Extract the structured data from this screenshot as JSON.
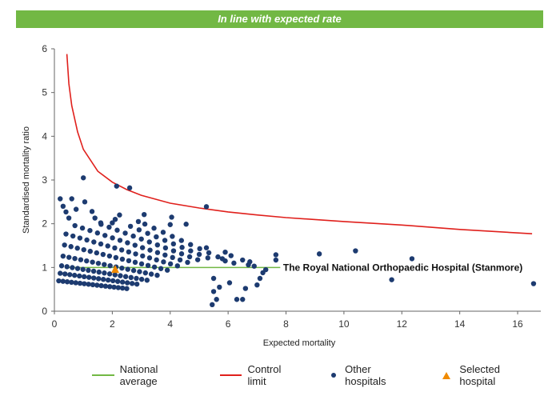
{
  "banner": {
    "text": "In line with expected rate"
  },
  "colors": {
    "banner": "#72b844",
    "control": "#e0201c",
    "national": "#72b844",
    "dots": "#1d3b70",
    "selected": "#f08a00"
  },
  "chart_data": {
    "type": "scatter",
    "xlabel": "Expected mortality",
    "ylabel": "Standardised mortality ratio",
    "xlim": [
      0,
      16.8
    ],
    "ylim": [
      0,
      6
    ],
    "xticks": [
      0,
      2,
      4,
      6,
      8,
      10,
      12,
      14,
      16
    ],
    "yticks": [
      0,
      1,
      2,
      3,
      4,
      5,
      6
    ],
    "grid": false,
    "legend_position": "bottom",
    "national_average": {
      "name": "National average",
      "y": 1.0,
      "x_range": [
        0.4,
        7.8
      ]
    },
    "control_limit": {
      "name": "Control limit",
      "points": [
        [
          0.43,
          5.88
        ],
        [
          0.5,
          5.2
        ],
        [
          0.6,
          4.7
        ],
        [
          0.8,
          4.1
        ],
        [
          1.0,
          3.7
        ],
        [
          1.5,
          3.2
        ],
        [
          2.0,
          2.95
        ],
        [
          2.5,
          2.78
        ],
        [
          3.0,
          2.65
        ],
        [
          4.0,
          2.47
        ],
        [
          5.0,
          2.36
        ],
        [
          6.0,
          2.27
        ],
        [
          7.0,
          2.2
        ],
        [
          8.0,
          2.14
        ],
        [
          10.0,
          2.05
        ],
        [
          12.0,
          1.97
        ],
        [
          14.0,
          1.87
        ],
        [
          16.5,
          1.77
        ]
      ]
    },
    "other_hospitals": {
      "name": "Other hospitals",
      "points": [
        [
          0.2,
          2.57
        ],
        [
          0.3,
          2.4
        ],
        [
          0.4,
          2.27
        ],
        [
          0.5,
          2.13
        ],
        [
          0.6,
          2.57
        ],
        [
          0.75,
          2.33
        ],
        [
          1.0,
          3.05
        ],
        [
          1.05,
          2.5
        ],
        [
          1.3,
          2.28
        ],
        [
          1.4,
          2.13
        ],
        [
          1.6,
          2.02
        ],
        [
          2.0,
          2.02
        ],
        [
          2.1,
          2.1
        ],
        [
          2.25,
          2.2
        ],
        [
          2.15,
          2.86
        ],
        [
          2.6,
          2.82
        ],
        [
          2.9,
          2.05
        ],
        [
          3.1,
          2.21
        ],
        [
          4.05,
          2.15
        ],
        [
          4.55,
          1.99
        ],
        [
          5.25,
          2.39
        ],
        [
          4.0,
          1.98
        ],
        [
          5.25,
          1.45
        ],
        [
          5.9,
          1.35
        ],
        [
          6.1,
          1.27
        ],
        [
          6.5,
          1.17
        ],
        [
          6.75,
          1.13
        ],
        [
          7.65,
          1.29
        ],
        [
          7.65,
          1.17
        ],
        [
          9.15,
          1.31
        ],
        [
          10.4,
          1.38
        ],
        [
          12.35,
          1.2
        ],
        [
          11.65,
          0.72
        ],
        [
          16.55,
          0.63
        ],
        [
          6.6,
          0.52
        ],
        [
          6.05,
          0.65
        ],
        [
          6.3,
          0.27
        ],
        [
          6.5,
          0.27
        ],
        [
          5.6,
          0.27
        ],
        [
          5.45,
          0.15
        ],
        [
          7.0,
          0.6
        ],
        [
          7.1,
          0.75
        ],
        [
          7.2,
          0.88
        ],
        [
          7.3,
          0.95
        ],
        [
          6.9,
          1.03
        ],
        [
          6.7,
          1.06
        ],
        [
          6.2,
          1.1
        ],
        [
          5.9,
          1.15
        ],
        [
          5.8,
          1.2
        ],
        [
          5.5,
          0.75
        ],
        [
          5.7,
          0.55
        ],
        [
          5.5,
          0.45
        ]
      ]
    },
    "selected_hospital": {
      "name": "Selected hospital",
      "label": "The Royal National Orthopaedic Hospital (Stanmore)",
      "x": 2.1,
      "y": 0.95
    }
  },
  "legend": [
    {
      "label": "National average",
      "kind": "line",
      "color": "#72b844"
    },
    {
      "label": "Control limit",
      "kind": "line",
      "color": "#e0201c"
    },
    {
      "label": "Other hospitals",
      "kind": "dot",
      "color": "#1d3b70"
    },
    {
      "label": "Selected hospital",
      "kind": "triangle",
      "color": "#f08a00"
    }
  ]
}
